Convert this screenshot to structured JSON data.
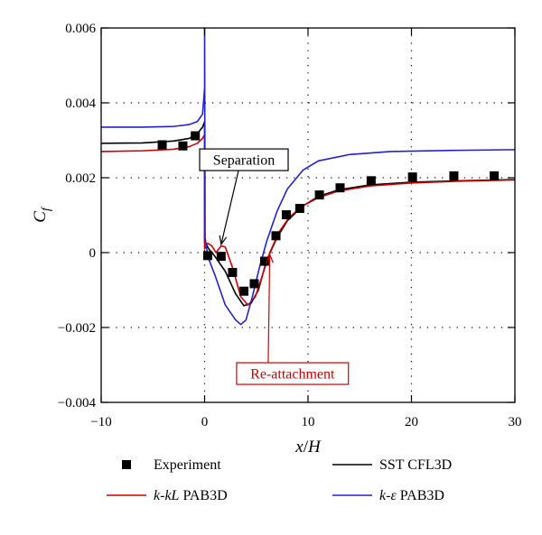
{
  "chart_data": {
    "type": "line",
    "xlabel": {
      "main": "x",
      "sep": "/",
      "sub": "H"
    },
    "ylabel": {
      "main": "C",
      "sub": "f"
    },
    "xlim": [
      -10,
      30
    ],
    "ylim": [
      -0.004,
      0.006
    ],
    "x_ticks": [
      -10,
      0,
      10,
      20,
      30
    ],
    "x_tick_labels": [
      "−10",
      "0",
      "10",
      "20",
      "30"
    ],
    "y_ticks": [
      -0.004,
      -0.002,
      0,
      0.002,
      0.004,
      0.006
    ],
    "y_tick_labels": [
      "−0.004",
      "−0.002",
      "0",
      "0.002",
      "0.004",
      "0.006"
    ],
    "grid": "dotted",
    "legend_position": "below",
    "series": [
      {
        "name": "Experiment",
        "kind": "scatter",
        "marker": "square",
        "color": "#000000",
        "points": [
          [
            -4.1,
            0.00288
          ],
          [
            -2.1,
            0.00285
          ],
          [
            -0.9,
            0.00312
          ],
          [
            0.3,
            -8e-05
          ],
          [
            1.6,
            -0.0001
          ],
          [
            2.7,
            -0.00053
          ],
          [
            3.8,
            -0.00103
          ],
          [
            4.8,
            -0.00083
          ],
          [
            5.8,
            -0.00023
          ],
          [
            6.9,
            0.00045
          ],
          [
            7.9,
            0.00101
          ],
          [
            9.2,
            0.00118
          ],
          [
            11.1,
            0.00154
          ],
          [
            13.1,
            0.00173
          ],
          [
            16.1,
            0.00192
          ],
          [
            20.1,
            0.00202
          ],
          [
            24.1,
            0.00205
          ],
          [
            28.0,
            0.00205
          ]
        ]
      },
      {
        "name": "SST CFL3D",
        "kind": "line",
        "color": "#000000",
        "points": [
          [
            -10,
            0.00292
          ],
          [
            -6,
            0.00293
          ],
          [
            -3,
            0.00298
          ],
          [
            -1.5,
            0.00305
          ],
          [
            -0.7,
            0.00318
          ],
          [
            -0.2,
            0.00335
          ],
          [
            0,
            0.0035
          ],
          [
            0,
            0.0003
          ],
          [
            0.4,
            0.0001
          ],
          [
            1.0,
            -0.0001
          ],
          [
            2.0,
            -0.0005
          ],
          [
            3.0,
            -0.0011
          ],
          [
            3.8,
            -0.00142
          ],
          [
            4.5,
            -0.00135
          ],
          [
            5.2,
            -0.001
          ],
          [
            6.0,
            -0.0002
          ],
          [
            7.0,
            0.0004
          ],
          [
            8.0,
            0.00085
          ],
          [
            9.5,
            0.00125
          ],
          [
            11,
            0.0015
          ],
          [
            13,
            0.00168
          ],
          [
            16,
            0.00181
          ],
          [
            20,
            0.00188
          ],
          [
            25,
            0.00192
          ],
          [
            30,
            0.00195
          ]
        ]
      },
      {
        "name": "k-kL PAB3D",
        "kind": "line",
        "color": "#cc0000",
        "points": [
          [
            -10,
            0.0027
          ],
          [
            -6,
            0.00272
          ],
          [
            -3,
            0.00276
          ],
          [
            -1.5,
            0.00283
          ],
          [
            -0.7,
            0.00292
          ],
          [
            -0.2,
            0.00305
          ],
          [
            0,
            0.00315
          ],
          [
            0,
            0.0001
          ],
          [
            0.3,
            0.00025
          ],
          [
            0.7,
            0.00018
          ],
          [
            1.1,
            0.0
          ],
          [
            1.6,
            0.00018
          ],
          [
            2.0,
            0.00015
          ],
          [
            2.7,
            -0.0004
          ],
          [
            3.5,
            -0.00118
          ],
          [
            4.2,
            -0.0014
          ],
          [
            4.9,
            -0.00118
          ],
          [
            5.6,
            -0.0006
          ],
          [
            6.3,
            0.0
          ],
          [
            7.2,
            0.00055
          ],
          [
            8.2,
            0.00095
          ],
          [
            9.5,
            0.00125
          ],
          [
            11,
            0.00147
          ],
          [
            13,
            0.00165
          ],
          [
            16,
            0.00178
          ],
          [
            20,
            0.00186
          ],
          [
            25,
            0.00191
          ],
          [
            30,
            0.00194
          ]
        ]
      },
      {
        "name": "k-ε PAB3D",
        "kind": "line",
        "color": "#2222cc",
        "points": [
          [
            -10,
            0.00335
          ],
          [
            -6,
            0.00335
          ],
          [
            -3,
            0.00337
          ],
          [
            -1.5,
            0.00342
          ],
          [
            -0.7,
            0.0035
          ],
          [
            -0.2,
            0.0037
          ],
          [
            0,
            0.0044
          ],
          [
            0,
            0.006
          ],
          [
            0.05,
            0.0004
          ],
          [
            0.3,
            -0.0001
          ],
          [
            1.0,
            -0.0006
          ],
          [
            2.0,
            -0.0014
          ],
          [
            3.0,
            -0.0018
          ],
          [
            3.5,
            -0.00192
          ],
          [
            4.0,
            -0.0018
          ],
          [
            4.6,
            -0.0012
          ],
          [
            5.3,
            -0.0004
          ],
          [
            6.0,
            0.0003
          ],
          [
            7.0,
            0.0011
          ],
          [
            8.0,
            0.0017
          ],
          [
            9.5,
            0.0022
          ],
          [
            11,
            0.00245
          ],
          [
            14,
            0.00262
          ],
          [
            18,
            0.0027
          ],
          [
            24,
            0.00273
          ],
          [
            30,
            0.00275
          ]
        ]
      }
    ],
    "annotations": [
      {
        "text": "Separation",
        "box_color": "#000000",
        "text_color": "#000000",
        "box_at": [
          3.8,
          0.00248
        ],
        "arrow_to": [
          1.6,
          0.00022
        ]
      },
      {
        "text": "Re-attachment",
        "box_color": "#cc0000",
        "text_color": "#cc0000",
        "box_at": [
          8.5,
          -0.00323
        ],
        "arrow_to": [
          6.3,
          -5e-05
        ]
      }
    ],
    "legend": [
      {
        "label": "Experiment",
        "symbol": "square",
        "color": "#000000"
      },
      {
        "label_parts": [
          "k",
          "-",
          "kL",
          " PAB3D"
        ],
        "symbol": "line",
        "color": "#cc0000"
      },
      {
        "label": "SST CFL3D",
        "symbol": "line",
        "color": "#000000"
      },
      {
        "label_parts": [
          "k",
          "-",
          "ε",
          " PAB3D"
        ],
        "symbol": "line",
        "color": "#2222cc"
      }
    ]
  }
}
